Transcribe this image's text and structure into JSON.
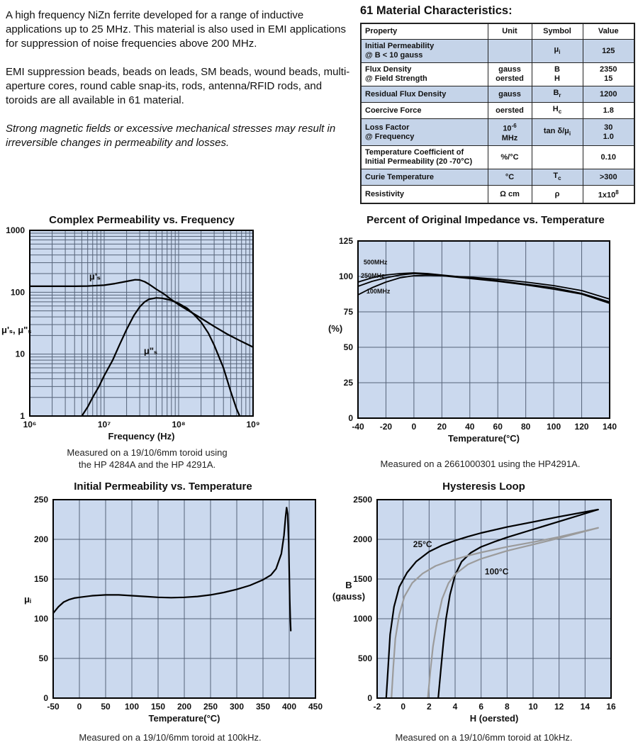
{
  "colors": {
    "plot_background": "#cbd9ee",
    "grid_line": "#566378",
    "table_shaded_row": "#c5d4e9",
    "curve_black": "#000000",
    "curve_gray": "#9b9b9b"
  },
  "intro": {
    "paragraphs": [
      "A high frequency NiZn ferrite developed for a range of inductive applications up to 25 MHz. This material is also used in EMI applications for suppression of noise frequencies above 200 MHz.",
      "EMI suppression beads, beads on leads, SM beads, wound beads, multi-aperture cores, round cable snap-its, rods, antenna/RFID rods, and toroids are all available in 61 material.",
      "Strong magnetic fields or excessive mechanical stresses may result in irreversible changes in permeability and losses."
    ]
  },
  "table": {
    "title": "61 Material Characteristics:",
    "columns": [
      "Property",
      "Unit",
      "Symbol",
      "Value"
    ],
    "rows": [
      {
        "property": "Initial Permeability<br>@ B &lt; 10 gauss",
        "unit": "",
        "symbol": "μ<sub>i</sub>",
        "value": "125",
        "shaded": true
      },
      {
        "property": "Flux Density<br>@ Field Strength",
        "unit": "gauss<br>oersted",
        "symbol": "B<br>H",
        "value": "2350<br>15",
        "shaded": false
      },
      {
        "property": "Residual Flux Density",
        "unit": "gauss",
        "symbol": "B<sub>r</sub>",
        "value": "1200",
        "shaded": true
      },
      {
        "property": "Coercive Force",
        "unit": "oersted",
        "symbol": "H<sub>c</sub>",
        "value": "1.8",
        "shaded": false
      },
      {
        "property": "Loss Factor<br>@ Frequency",
        "unit": "10<sup>-6</sup><br>MHz",
        "symbol": "tan δ/μ<sub>i</sub>",
        "value": "30<br>1.0",
        "shaded": true
      },
      {
        "property": "Temperature Coefficient of<br>Initial Permeability (20 -70°C)",
        "unit": "%/°C",
        "symbol": "",
        "value": "0.10",
        "shaded": false
      },
      {
        "property": "Curie Temperature",
        "unit": "°C",
        "symbol": "T<sub>c</sub>",
        "value": ">300",
        "shaded": true
      },
      {
        "property": "Resistivity",
        "unit": "Ω cm",
        "symbol": "ρ",
        "value": "1x10<sup>8</sup>",
        "shaded": false
      }
    ]
  },
  "chart_data": [
    {
      "type": "line",
      "title": "Complex Permeability vs. Frequency",
      "xlabel": "Frequency (Hz)",
      "ylabel": "μ'ₛ, μ\"ₛ",
      "caption": "Measured on a 19/10/6mm toroid using\nthe HP 4284A and the HP 4291A.",
      "xscale": "log",
      "yscale": "log",
      "xlim": [
        1000000,
        1000000000
      ],
      "ylim": [
        1,
        1000
      ],
      "xticks": [
        1000000,
        10000000,
        100000000,
        1000000000
      ],
      "xtick_labels": [
        "10⁶",
        "10⁷",
        "10⁸",
        "10⁹"
      ],
      "yticks": [
        1,
        10,
        100,
        1000
      ],
      "ytick_labels": [
        "1",
        "10",
        "100",
        "1000"
      ],
      "grid": "log-minor",
      "series": [
        {
          "name": "μ'ₛ",
          "color": "#000000",
          "width": 2.2,
          "points": [
            [
              1000000.0,
              125
            ],
            [
              2000000.0,
              125
            ],
            [
              4000000.0,
              125
            ],
            [
              6000000.0,
              126
            ],
            [
              10000000.0,
              130
            ],
            [
              14000000.0,
              138
            ],
            [
              20000000.0,
              150
            ],
            [
              26000000.0,
              159
            ],
            [
              30000000.0,
              158
            ],
            [
              35000000.0,
              148
            ],
            [
              40000000.0,
              135
            ],
            [
              50000000.0,
              112
            ],
            [
              65000000.0,
              92
            ],
            [
              80000000.0,
              76
            ],
            [
              100000000.0,
              63
            ],
            [
              150000000.0,
              47
            ],
            [
              200000000.0,
              38
            ],
            [
              300000000.0,
              28
            ],
            [
              450000000.0,
              21
            ],
            [
              700000000.0,
              16
            ],
            [
              1000000000.0,
              13
            ]
          ]
        },
        {
          "name": "μ\"ₛ",
          "color": "#000000",
          "width": 2.2,
          "points": [
            [
              5000000.0,
              1
            ],
            [
              6000000.0,
              1.4
            ],
            [
              7000000.0,
              2
            ],
            [
              8500000.0,
              3
            ],
            [
              10000000.0,
              4.5
            ],
            [
              13000000.0,
              8
            ],
            [
              16000000.0,
              14
            ],
            [
              20000000.0,
              25
            ],
            [
              25000000.0,
              42
            ],
            [
              30000000.0,
              58
            ],
            [
              35000000.0,
              70
            ],
            [
              40000000.0,
              77
            ],
            [
              50000000.0,
              81
            ],
            [
              60000000.0,
              80
            ],
            [
              80000000.0,
              74
            ],
            [
              100000000.0,
              66
            ],
            [
              130000000.0,
              55
            ],
            [
              160000000.0,
              44
            ],
            [
              200000000.0,
              33
            ],
            [
              250000000.0,
              22
            ],
            [
              300000000.0,
              14
            ],
            [
              400000000.0,
              6
            ],
            [
              500000000.0,
              2.5
            ],
            [
              600000000.0,
              1.3
            ],
            [
              660000000.0,
              1
            ]
          ]
        }
      ],
      "annotations": [
        {
          "text": "μ'ₛ",
          "x": 7500000,
          "y": 160,
          "size": 13,
          "bold": true
        },
        {
          "text": "μ\"ₛ",
          "x": 42000000,
          "y": 10,
          "size": 13,
          "bold": true
        }
      ]
    },
    {
      "type": "line",
      "title": "Percent of Original Impedance vs. Temperature",
      "xlabel": "Temperature(°C)",
      "ylabel": "(%)",
      "caption": "Measured on a 2661000301 using the HP4291A.",
      "xscale": "linear",
      "yscale": "linear",
      "xlim": [
        -40,
        140
      ],
      "ylim": [
        0,
        125
      ],
      "xticks": [
        -40,
        -20,
        0,
        20,
        40,
        60,
        80,
        100,
        120,
        140
      ],
      "yticks": [
        0,
        25,
        50,
        75,
        100,
        125
      ],
      "grid": "major",
      "series": [
        {
          "name": "500MHz",
          "color": "#000000",
          "width": 1.8,
          "points": [
            [
              -40,
              96
            ],
            [
              -30,
              99
            ],
            [
              -20,
              101
            ],
            [
              -10,
              102
            ],
            [
              0,
              102.5
            ],
            [
              10,
              102
            ],
            [
              20,
              101
            ],
            [
              40,
              99
            ],
            [
              60,
              97
            ],
            [
              80,
              94.5
            ],
            [
              100,
              92
            ],
            [
              120,
              88
            ],
            [
              140,
              82
            ]
          ]
        },
        {
          "name": "250MHz",
          "color": "#000000",
          "width": 1.8,
          "points": [
            [
              -40,
              93
            ],
            [
              -30,
              96.5
            ],
            [
              -20,
              99
            ],
            [
              -10,
              101
            ],
            [
              0,
              102
            ],
            [
              10,
              101.5
            ],
            [
              20,
              100.5
            ],
            [
              40,
              98.5
            ],
            [
              60,
              96.5
            ],
            [
              80,
              94
            ],
            [
              100,
              91
            ],
            [
              120,
              87.5
            ],
            [
              140,
              81
            ]
          ]
        },
        {
          "name": "100MHz",
          "color": "#000000",
          "width": 1.8,
          "points": [
            [
              -40,
              87
            ],
            [
              -30,
              92
            ],
            [
              -20,
              96
            ],
            [
              -10,
              99
            ],
            [
              0,
              100.5
            ],
            [
              10,
              100.8
            ],
            [
              20,
              100.5
            ],
            [
              40,
              99.5
            ],
            [
              60,
              98
            ],
            [
              80,
              96
            ],
            [
              100,
              93.5
            ],
            [
              120,
              90
            ],
            [
              140,
              84
            ]
          ]
        }
      ],
      "annotations": [
        {
          "text": "500MHz",
          "x": -36,
          "y": 108.5,
          "size": 9,
          "bold": true,
          "anchor": "start"
        },
        {
          "text": "250MHz",
          "x": -38,
          "y": 99,
          "size": 9,
          "bold": true,
          "anchor": "start"
        },
        {
          "text": "100MHz",
          "x": -34,
          "y": 88,
          "size": 9,
          "bold": true,
          "anchor": "start"
        }
      ]
    },
    {
      "type": "line",
      "title": "Initial Permeability vs. Temperature",
      "xlabel": "Temperature(°C)",
      "ylabel": "μᵢ",
      "caption": "Measured on a 19/10/6mm toroid at 100kHz.",
      "xscale": "linear",
      "yscale": "linear",
      "xlim": [
        -50,
        450
      ],
      "ylim": [
        0,
        250
      ],
      "xticks": [
        -50,
        0,
        50,
        100,
        150,
        200,
        250,
        300,
        350,
        400,
        450
      ],
      "yticks": [
        0,
        50,
        100,
        150,
        200,
        250
      ],
      "grid": "major",
      "series": [
        {
          "name": "μᵢ",
          "color": "#000000",
          "width": 2.2,
          "points": [
            [
              -50,
              107
            ],
            [
              -40,
              115
            ],
            [
              -30,
              121
            ],
            [
              -20,
              124
            ],
            [
              -10,
              126
            ],
            [
              0,
              127
            ],
            [
              25,
              129
            ],
            [
              50,
              130
            ],
            [
              75,
              130
            ],
            [
              100,
              129
            ],
            [
              125,
              128
            ],
            [
              150,
              127
            ],
            [
              175,
              126.5
            ],
            [
              200,
              127
            ],
            [
              225,
              128
            ],
            [
              250,
              130
            ],
            [
              275,
              133
            ],
            [
              300,
              137
            ],
            [
              325,
              142
            ],
            [
              350,
              149
            ],
            [
              365,
              155
            ],
            [
              375,
              163
            ],
            [
              385,
              182
            ],
            [
              390,
              205
            ],
            [
              393,
              228
            ],
            [
              395,
              240
            ],
            [
              397,
              232
            ],
            [
              399,
              195
            ],
            [
              400,
              160
            ],
            [
              401,
              125
            ],
            [
              402,
              100
            ],
            [
              403,
              85
            ]
          ]
        }
      ],
      "annotations": []
    },
    {
      "type": "line",
      "title": "Hysteresis Loop",
      "xlabel": "H (oersted)",
      "ylabel": "B\n(gauss)",
      "caption": "Measured on a 19/10/6mm toroid at 10kHz.",
      "xscale": "linear",
      "yscale": "linear",
      "xlim": [
        -2,
        16
      ],
      "ylim": [
        0,
        2500
      ],
      "xticks": [
        -2,
        0,
        2,
        4,
        6,
        8,
        10,
        12,
        14,
        16
      ],
      "yticks": [
        0,
        500,
        1000,
        1500,
        2000,
        2500
      ],
      "grid": "major",
      "series": [
        {
          "name": "25°C upper branch",
          "color": "#000000",
          "width": 2.2,
          "points": [
            [
              -1.3,
              0
            ],
            [
              -1.15,
              400
            ],
            [
              -1.0,
              800
            ],
            [
              -0.7,
              1150
            ],
            [
              -0.3,
              1400
            ],
            [
              0.3,
              1580
            ],
            [
              1,
              1720
            ],
            [
              2,
              1845
            ],
            [
              3,
              1925
            ],
            [
              4,
              1985
            ],
            [
              5,
              2035
            ],
            [
              6,
              2080
            ],
            [
              8,
              2155
            ],
            [
              10,
              2220
            ],
            [
              12,
              2285
            ],
            [
              15,
              2375
            ]
          ]
        },
        {
          "name": "25°C lower branch",
          "color": "#000000",
          "width": 2.2,
          "points": [
            [
              2.7,
              0
            ],
            [
              2.9,
              350
            ],
            [
              3.1,
              700
            ],
            [
              3.3,
              1000
            ],
            [
              3.6,
              1300
            ],
            [
              4.0,
              1550
            ],
            [
              4.5,
              1720
            ],
            [
              5.2,
              1830
            ],
            [
              6,
              1905
            ],
            [
              7,
              1968
            ],
            [
              8,
              2025
            ],
            [
              10,
              2125
            ],
            [
              12,
              2225
            ],
            [
              15,
              2375
            ]
          ]
        },
        {
          "name": "100°C upper branch",
          "color": "#9b9b9b",
          "width": 2.2,
          "points": [
            [
              -0.9,
              0
            ],
            [
              -0.75,
              400
            ],
            [
              -0.6,
              750
            ],
            [
              -0.3,
              1050
            ],
            [
              0.1,
              1280
            ],
            [
              0.7,
              1450
            ],
            [
              1.5,
              1570
            ],
            [
              2.5,
              1665
            ],
            [
              3.5,
              1725
            ],
            [
              5,
              1795
            ],
            [
              6,
              1835
            ],
            [
              8,
              1905
            ],
            [
              10,
              1965
            ],
            [
              12,
              2030
            ],
            [
              15,
              2145
            ]
          ]
        },
        {
          "name": "100°C lower branch",
          "color": "#9b9b9b",
          "width": 2.2,
          "points": [
            [
              1.9,
              0
            ],
            [
              2.1,
              350
            ],
            [
              2.3,
              650
            ],
            [
              2.6,
              950
            ],
            [
              3.0,
              1250
            ],
            [
              3.5,
              1450
            ],
            [
              4.0,
              1560
            ],
            [
              5,
              1685
            ],
            [
              6,
              1755
            ],
            [
              8,
              1855
            ],
            [
              10,
              1935
            ],
            [
              12,
              2015
            ],
            [
              15,
              2145
            ]
          ]
        }
      ],
      "annotations": [
        {
          "text": "25°C",
          "x": 1.5,
          "y": 1900,
          "size": 12,
          "bold": true
        },
        {
          "text": "100°C",
          "x": 7.2,
          "y": 1560,
          "size": 12,
          "bold": true
        }
      ]
    }
  ]
}
